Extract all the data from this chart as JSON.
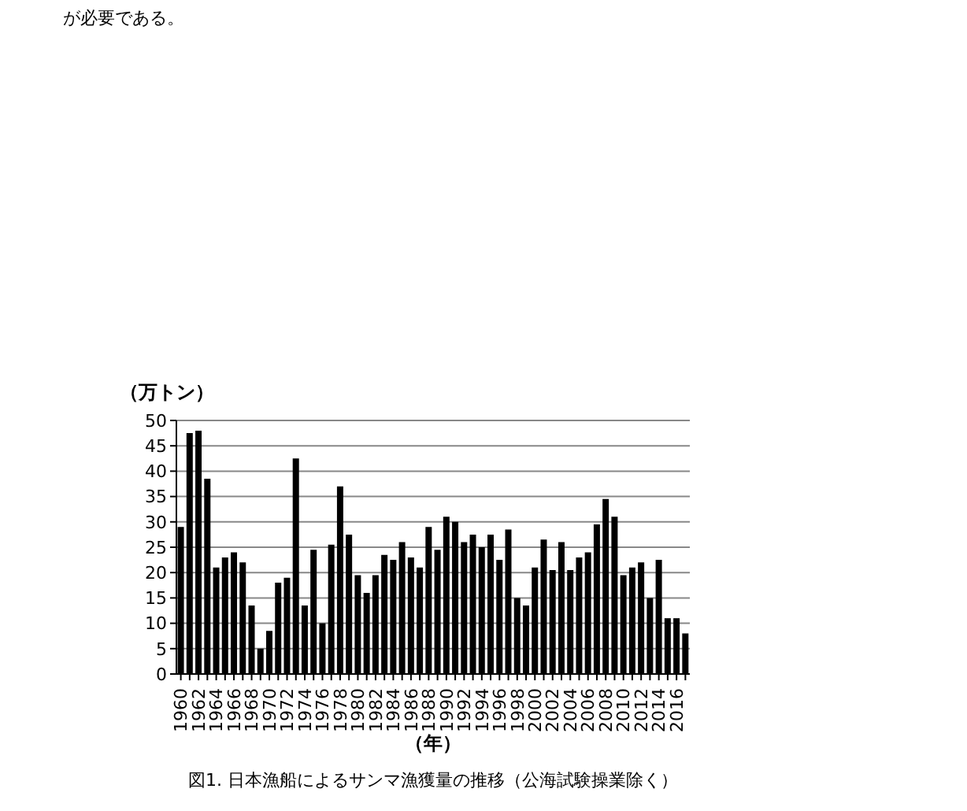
{
  "chart_data": {
    "type": "bar",
    "title": "図1. 日本漁船によるサンマ漁獲量の推移（公海試験操業除く）",
    "xlabel": "（年）",
    "ylabel": "（万トン）",
    "annotations": [
      "が必要である。"
    ],
    "categories": [
      "1960",
      null,
      "1962",
      null,
      "1964",
      null,
      "1966",
      null,
      "1968",
      null,
      "1970",
      null,
      "1972",
      null,
      "1974",
      null,
      "1976",
      null,
      "1978",
      null,
      "1980",
      null,
      "1982",
      null,
      "1984",
      null,
      "1986",
      null,
      "1988",
      null,
      "1990",
      null,
      "1992",
      null,
      "1994",
      null,
      "1996",
      null,
      "1998",
      null,
      "2000",
      null,
      "2002",
      null,
      "2004",
      null,
      "2006",
      null,
      "2008",
      null,
      "2010",
      null,
      "2012",
      null,
      "2014",
      null,
      "2016",
      null
    ],
    "values": [
      29,
      47.5,
      48,
      38.5,
      21,
      23,
      24,
      22,
      13.5,
      5,
      8.5,
      18,
      19,
      42.5,
      13.5,
      24.5,
      10,
      25.5,
      37,
      27.5,
      19.5,
      16,
      19.5,
      23.5,
      22.5,
      26,
      23,
      21,
      29,
      24.5,
      31,
      30,
      26,
      27.5,
      25,
      27.5,
      22.5,
      28.5,
      15,
      13.5,
      21,
      26.5,
      20.5,
      26,
      20.5,
      23,
      24,
      29.5,
      34.5,
      31,
      19.5,
      21,
      22,
      15,
      22.5,
      11,
      11,
      8
    ],
    "color": "#000000",
    "ylim": [
      0,
      50
    ],
    "yticks": [
      0,
      5,
      10,
      15,
      20,
      25,
      30,
      35,
      40,
      45,
      50
    ],
    "grid": "y"
  }
}
